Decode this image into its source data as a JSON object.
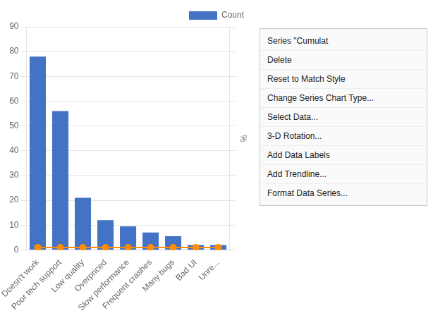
{
  "chart_data": {
    "type": "bar",
    "categories": [
      "Doesn't work",
      "Poor tech support",
      "Low quality",
      "Overpriced",
      "Slow performance",
      "Frequent crashes",
      "Many bugs",
      "Bad UI",
      "Unre..."
    ],
    "series": [
      {
        "name": "Count",
        "type": "bar",
        "color": "#4472C4",
        "values": [
          78,
          56,
          21,
          12,
          9.5,
          7,
          5.5,
          2,
          2
        ]
      },
      {
        "type": "line",
        "color": "#FF8C00",
        "marker": "circle",
        "values": [
          1,
          1,
          1,
          1,
          1,
          1,
          1,
          1,
          1
        ]
      }
    ],
    "ylim": [
      0,
      90
    ],
    "yticks": [
      0,
      10,
      20,
      30,
      40,
      50,
      60,
      70,
      80,
      90
    ],
    "y2label": "%",
    "grid": "y",
    "legend": "upper right",
    "annotations": [
      "Series \"Cumulat",
      "Delete",
      "Reset to Match Style",
      "Change Series Chart Type...",
      "Select Data...",
      "3-D Rotation...",
      "Add Data Labels",
      "Add Trendline...",
      "Format Data Series..."
    ]
  }
}
